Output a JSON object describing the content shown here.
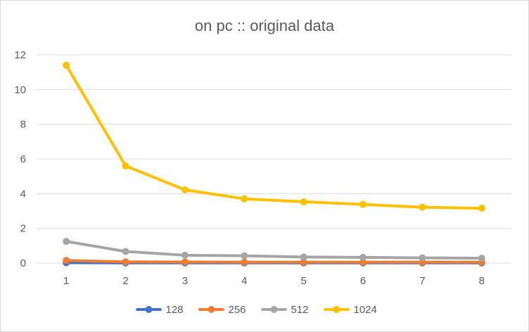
{
  "chart_data": {
    "type": "line",
    "title": "on pc :: original data",
    "xlabel": "",
    "ylabel": "",
    "x": [
      1,
      2,
      3,
      4,
      5,
      6,
      7,
      8
    ],
    "ylim": [
      0,
      12
    ],
    "yticks": [
      0,
      2,
      4,
      6,
      8,
      10,
      12
    ],
    "grid": true,
    "legend_position": "bottom",
    "series": [
      {
        "name": "128",
        "color": "#4472C4",
        "values": [
          0.02,
          0.01,
          0.01,
          0.01,
          0.01,
          0.01,
          0.01,
          0.01
        ]
      },
      {
        "name": "256",
        "color": "#ED7D31",
        "values": [
          0.15,
          0.07,
          0.06,
          0.05,
          0.05,
          0.05,
          0.05,
          0.05
        ]
      },
      {
        "name": "512",
        "color": "#A5A5A5",
        "values": [
          1.25,
          0.67,
          0.45,
          0.42,
          0.35,
          0.33,
          0.3,
          0.28
        ]
      },
      {
        "name": "1024",
        "color": "#FFC000",
        "values": [
          11.4,
          5.6,
          4.22,
          3.7,
          3.53,
          3.38,
          3.22,
          3.16
        ]
      }
    ]
  }
}
